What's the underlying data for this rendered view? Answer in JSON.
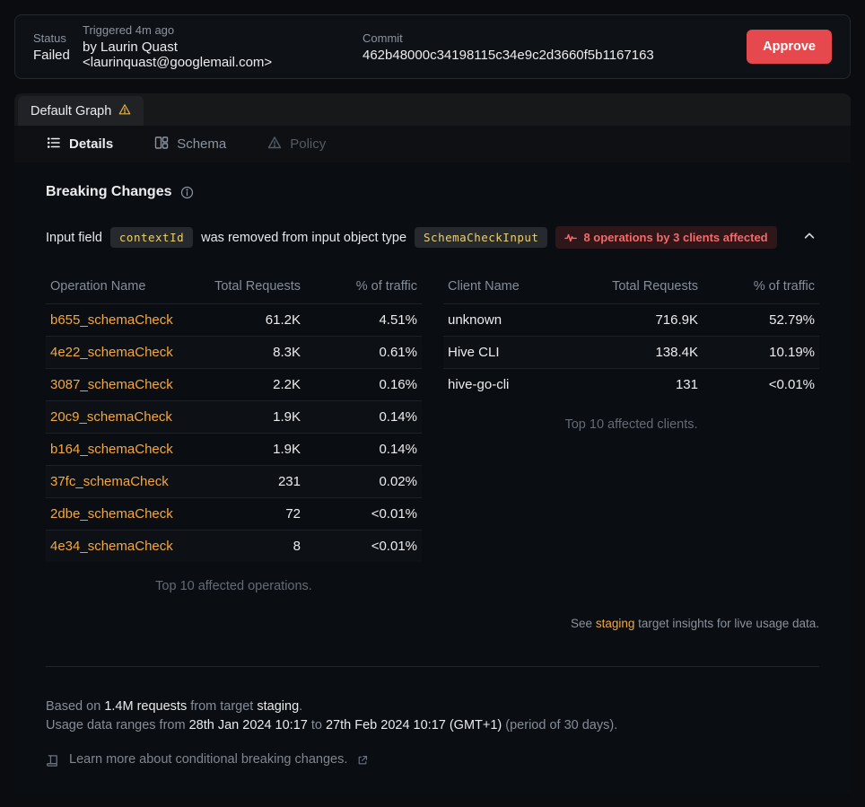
{
  "header": {
    "status_label": "Status",
    "status_value": "Failed",
    "triggered_label": "Triggered 4m ago",
    "triggered_value": "by Laurin Quast <laurinquast@googlemail.com>",
    "commit_label": "Commit",
    "commit_value": "462b48000c34198115c34e9c2d3660f5b1167163",
    "approve_label": "Approve"
  },
  "tabs": {
    "graph_tab_label": "Default Graph"
  },
  "subtabs": {
    "details": "Details",
    "schema": "Schema",
    "policy": "Policy"
  },
  "breaking": {
    "title": "Breaking Changes",
    "change": {
      "prefix": "Input field",
      "field_code": "contextId",
      "middle": "was removed from input object type",
      "type_code": "SchemaCheckInput",
      "badge": "8 operations by 3 clients affected"
    }
  },
  "tables": {
    "operations": {
      "headers": [
        "Operation Name",
        "Total Requests",
        "% of traffic"
      ],
      "cell_names": [
        "operation-link",
        "total-requests",
        "traffic-percent"
      ],
      "first_col_link": true,
      "rows": [
        [
          "b655_schemaCheck",
          "61.2K",
          "4.51%"
        ],
        [
          "4e22_schemaCheck",
          "8.3K",
          "0.61%"
        ],
        [
          "3087_schemaCheck",
          "2.2K",
          "0.16%"
        ],
        [
          "20c9_schemaCheck",
          "1.9K",
          "0.14%"
        ],
        [
          "b164_schemaCheck",
          "1.9K",
          "0.14%"
        ],
        [
          "37fc_schemaCheck",
          "231",
          "0.02%"
        ],
        [
          "2dbe_schemaCheck",
          "72",
          "<0.01%"
        ],
        [
          "4e34_schemaCheck",
          "8",
          "<0.01%"
        ]
      ],
      "caption": "Top 10 affected operations."
    },
    "clients": {
      "headers": [
        "Client Name",
        "Total Requests",
        "% of traffic"
      ],
      "cell_names": [
        "client-name",
        "total-requests",
        "traffic-percent"
      ],
      "first_col_link": false,
      "rows": [
        [
          "unknown",
          "716.9K",
          "52.79%"
        ],
        [
          "Hive CLI",
          "138.4K",
          "10.19%"
        ],
        [
          "hive-go-cli",
          "131",
          "<0.01%"
        ]
      ],
      "caption": "Top 10 affected clients."
    }
  },
  "see_note": {
    "prefix": "See ",
    "link": "staging",
    "suffix": " target insights for live usage data."
  },
  "footer": {
    "based_prefix": "Based on ",
    "based_requests": "1.4M requests",
    "based_middle": " from target ",
    "based_target": "staging",
    "based_suffix": ".",
    "range_prefix": "Usage data ranges from ",
    "range_from": "28th Jan 2024 10:17",
    "range_middle": " to ",
    "range_to": "27th Feb 2024 10:17 (GMT+1)",
    "range_suffix": " (period of 30 days).",
    "learn_more": "Learn more about conditional breaking changes."
  },
  "colors": {
    "accent_orange": "#f4a83d",
    "chip_yellow": "#ecd06f",
    "danger_red": "#e5484d",
    "badge_red": "#f4696b",
    "warning_amber": "#e3b341",
    "page_bg": "#0a0c10"
  }
}
